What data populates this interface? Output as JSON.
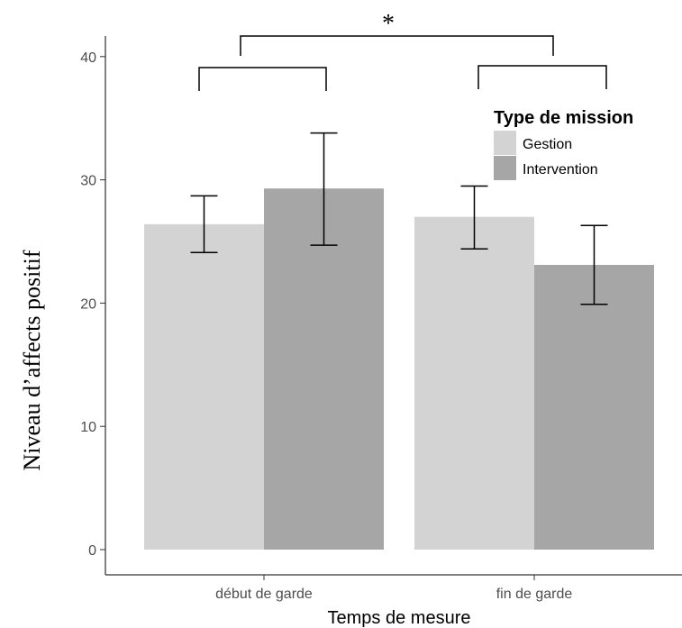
{
  "chart_data": {
    "type": "bar",
    "categories": [
      "début de garde",
      "fin de garde"
    ],
    "series": [
      {
        "name": "Gestion",
        "values": [
          26.4,
          27.0
        ],
        "error_low": [
          24.1,
          24.4
        ],
        "error_high": [
          28.7,
          29.5
        ],
        "color": "#d3d3d3"
      },
      {
        "name": "Intervention",
        "values": [
          29.3,
          23.1
        ],
        "error_low": [
          24.7,
          19.9
        ],
        "error_high": [
          33.8,
          26.3
        ],
        "color": "#a6a6a6"
      }
    ],
    "xlabel": "Temps de mesure",
    "ylabel": "Niveau d’affects positif",
    "ylim": [
      0,
      42
    ],
    "yticks": [
      0,
      10,
      20,
      30,
      40
    ],
    "legend": {
      "title": "Type de mission",
      "placement": "top-right"
    },
    "grid": false,
    "significance": {
      "symbol": "*"
    }
  }
}
